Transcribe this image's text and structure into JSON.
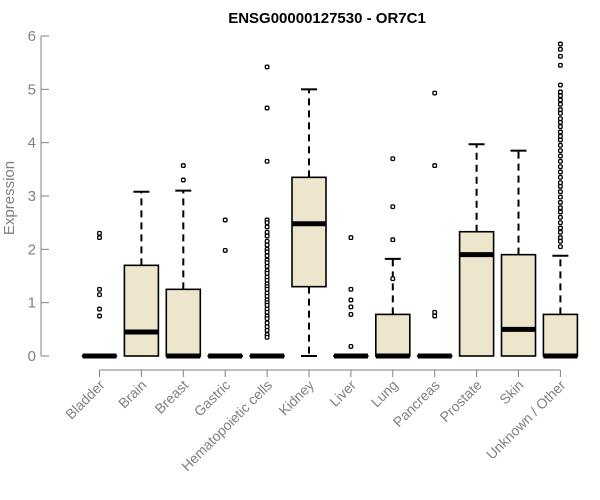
{
  "chart_data": {
    "type": "box",
    "title": "ENSG00000127530 - OR7C1",
    "ylabel": "Expression",
    "xlabel": "",
    "ylim": [
      0,
      6
    ],
    "yticks": [
      "0",
      "1",
      "2",
      "3",
      "4",
      "5",
      "6"
    ],
    "colors": {
      "box_fill": "#ede6cc",
      "box_stroke": "#000000",
      "axis": "#808080",
      "text": "#808080"
    },
    "grid": false,
    "categories": [
      "Bladder",
      "Brain",
      "Breast",
      "Gastric",
      "Hematopoietic cells",
      "Kidney",
      "Liver",
      "Lung",
      "Pancreas",
      "Prostate",
      "Skin",
      "Unknown / Other"
    ],
    "boxes": [
      {
        "category": "Bladder",
        "whisker_low": 0,
        "q1": 0,
        "median": 0,
        "q3": 0,
        "whisker_high": 0,
        "outliers": [
          2.3,
          2.22,
          1.25,
          1.15,
          0.88,
          0.75
        ]
      },
      {
        "category": "Brain",
        "whisker_low": 0,
        "q1": 0,
        "median": 0.45,
        "q3": 1.7,
        "whisker_high": 3.08,
        "outliers": []
      },
      {
        "category": "Breast",
        "whisker_low": 0,
        "q1": 0,
        "median": 0,
        "q3": 1.25,
        "whisker_high": 3.1,
        "outliers": [
          3.57,
          3.3
        ]
      },
      {
        "category": "Gastric",
        "whisker_low": 0,
        "q1": 0,
        "median": 0,
        "q3": 0,
        "whisker_high": 0,
        "outliers": [
          2.55,
          1.98
        ]
      },
      {
        "category": "Hematopoietic cells",
        "whisker_low": 0,
        "q1": 0,
        "median": 0,
        "q3": 0,
        "whisker_high": 0,
        "outliers": [
          5.42,
          4.65,
          3.65,
          2.55,
          2.5,
          2.42,
          2.32,
          2.25,
          2.15,
          2.08,
          2.0,
          1.95,
          1.88,
          1.8,
          1.75,
          1.68,
          1.6,
          1.55,
          1.48,
          1.42,
          1.35,
          1.3,
          1.25,
          1.18,
          1.12,
          1.05,
          1.0,
          0.95,
          0.88,
          0.82,
          0.75,
          0.7,
          0.62,
          0.55,
          0.48,
          0.4,
          0.35
        ]
      },
      {
        "category": "Kidney",
        "whisker_low": 0,
        "q1": 1.3,
        "median": 2.48,
        "q3": 3.35,
        "whisker_high": 5.0,
        "outliers": []
      },
      {
        "category": "Liver",
        "whisker_low": 0,
        "q1": 0,
        "median": 0,
        "q3": 0,
        "whisker_high": 0,
        "outliers": [
          2.22,
          1.25,
          1.05,
          0.92,
          0.78,
          0.18
        ]
      },
      {
        "category": "Lung",
        "whisker_low": 0,
        "q1": 0,
        "median": 0,
        "q3": 0.78,
        "whisker_high": 1.82,
        "outliers": [
          3.7,
          2.8,
          2.18,
          1.45
        ]
      },
      {
        "category": "Pancreas",
        "whisker_low": 0,
        "q1": 0,
        "median": 0,
        "q3": 0,
        "whisker_high": 0,
        "outliers": [
          4.93,
          3.57,
          0.82,
          0.75
        ]
      },
      {
        "category": "Prostate",
        "whisker_low": 0,
        "q1": 0,
        "median": 1.9,
        "q3": 2.33,
        "whisker_high": 3.97,
        "outliers": []
      },
      {
        "category": "Skin",
        "whisker_low": 0,
        "q1": 0,
        "median": 0.5,
        "q3": 1.9,
        "whisker_high": 3.85,
        "outliers": []
      },
      {
        "category": "Unknown / Other",
        "whisker_low": 0,
        "q1": 0,
        "median": 0,
        "q3": 0.78,
        "whisker_high": 1.88,
        "outliers": [
          5.85,
          5.75,
          5.62,
          5.45,
          5.08,
          4.95,
          4.88,
          4.8,
          4.72,
          4.62,
          4.55,
          4.45,
          4.38,
          4.3,
          4.2,
          4.12,
          4.05,
          3.95,
          3.85,
          3.75,
          3.65,
          3.55,
          3.45,
          3.35,
          3.25,
          3.18,
          3.08,
          2.98,
          2.88,
          2.78,
          2.7,
          2.6,
          2.5,
          2.4,
          2.32,
          2.22,
          2.15,
          2.05
        ]
      }
    ]
  }
}
